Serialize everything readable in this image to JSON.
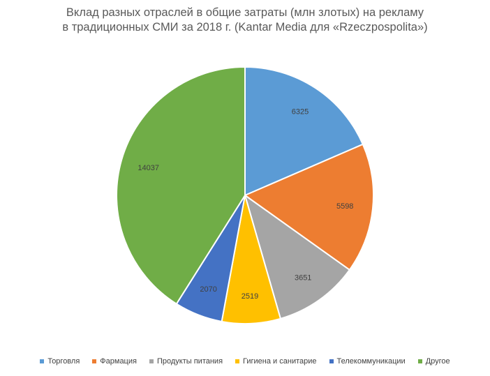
{
  "chart_data": {
    "type": "pie",
    "title_lines": [
      "Вклад разных отраслей в общие затраты (млн злотых) на рекламу",
      "в традиционных СМИ за 2018 г. (Kantar Media для «Rzeczpospolita»)"
    ],
    "legend_position": "bottom",
    "start_angle": "12 o'clock, clockwise",
    "slices": [
      {
        "label": "Торговля",
        "value": 6325,
        "color": "#5B9BD5"
      },
      {
        "label": "Фармация",
        "value": 5598,
        "color": "#ED7D31"
      },
      {
        "label": "Продукты питания",
        "value": 3651,
        "color": "#A5A5A5"
      },
      {
        "label": "Гигиена и санитарие",
        "value": 2519,
        "color": "#FFC000"
      },
      {
        "label": "Телекоммуникации",
        "value": 2070,
        "color": "#4472C4"
      },
      {
        "label": "Другое",
        "value": 14037,
        "color": "#70AD47"
      }
    ]
  }
}
